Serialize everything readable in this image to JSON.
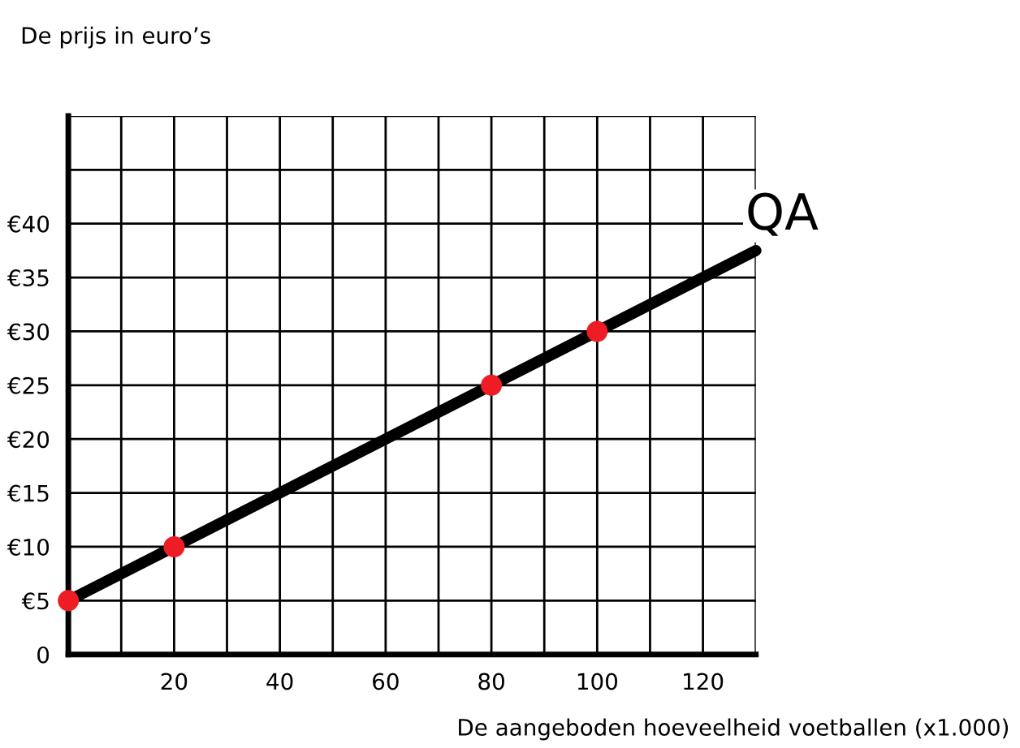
{
  "chart_data": {
    "type": "line",
    "ylabel": "De prijs in euro’s",
    "xlabel": "De aangeboden hoeveelheid voetballen (x1.000)",
    "series": [
      {
        "color": "#000000",
        "x": [
          0,
          130
        ],
        "values": [
          5,
          37.5
        ],
        "marker": "none"
      },
      {
        "type": "scatter",
        "color": "#ee1c25",
        "x": [
          0,
          20,
          80,
          100
        ],
        "values": [
          5,
          10,
          25,
          30
        ]
      }
    ],
    "annotations": [
      "QA"
    ],
    "xlim": [
      0,
      130
    ],
    "ylim": [
      0,
      50
    ],
    "xticks": [
      {
        "value": 0,
        "label": null
      },
      {
        "value": 10,
        "label": null
      },
      20,
      {
        "value": 30,
        "label": null
      },
      40,
      {
        "value": 50,
        "label": null
      },
      60,
      {
        "value": 70,
        "label": null
      },
      80,
      {
        "value": 90,
        "label": null
      },
      100,
      {
        "value": 110,
        "label": null
      },
      120,
      {
        "value": 130,
        "label": null
      }
    ],
    "yticks": [
      0,
      {
        "value": 5,
        "label": "€5"
      },
      {
        "value": 10,
        "label": "€10"
      },
      {
        "value": 15,
        "label": "€15"
      },
      {
        "value": 20,
        "label": "€20"
      },
      {
        "value": 25,
        "label": "€25"
      },
      {
        "value": 30,
        "label": "€30"
      },
      {
        "value": 35,
        "label": "€35"
      },
      {
        "value": 40,
        "label": "€40"
      },
      {
        "value": 45,
        "label": null
      },
      {
        "value": 50,
        "label": null
      }
    ],
    "grid": true,
    "legend": false
  }
}
